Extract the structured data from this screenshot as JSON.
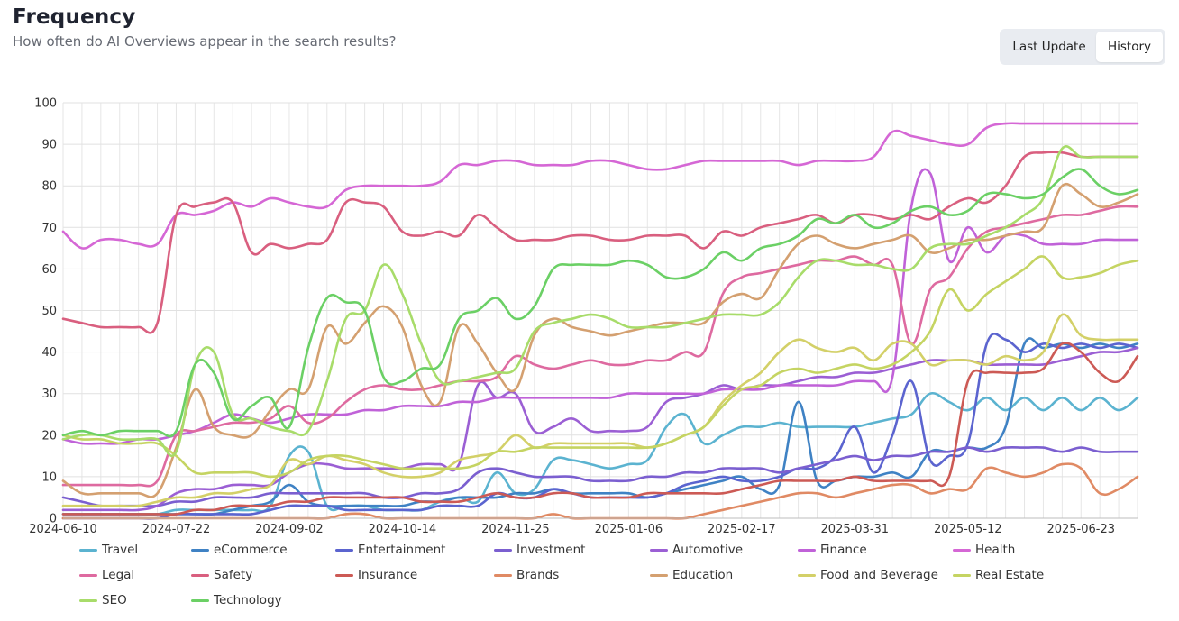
{
  "header": {
    "title": "Frequency",
    "subtitle": "How often do AI Overviews appear in the search results?"
  },
  "toggle": {
    "options": [
      "Last Update",
      "History"
    ],
    "selected": "History"
  },
  "chart_data": {
    "type": "line",
    "x": [
      "2024-06-10",
      "2024-06-17",
      "2024-06-24",
      "2024-07-01",
      "2024-07-08",
      "2024-07-15",
      "2024-07-22",
      "2024-07-29",
      "2024-08-05",
      "2024-08-12",
      "2024-08-19",
      "2024-08-26",
      "2024-09-02",
      "2024-09-09",
      "2024-09-16",
      "2024-09-23",
      "2024-09-30",
      "2024-10-07",
      "2024-10-14",
      "2024-10-21",
      "2024-10-28",
      "2024-11-04",
      "2024-11-11",
      "2024-11-18",
      "2024-11-25",
      "2024-12-02",
      "2024-12-09",
      "2024-12-16",
      "2024-12-23",
      "2024-12-30",
      "2025-01-06",
      "2025-01-13",
      "2025-01-20",
      "2025-01-27",
      "2025-02-03",
      "2025-02-10",
      "2025-02-17",
      "2025-02-24",
      "2025-03-03",
      "2025-03-10",
      "2025-03-17",
      "2025-03-24",
      "2025-03-31",
      "2025-04-07",
      "2025-04-14",
      "2025-04-21",
      "2025-04-28",
      "2025-05-05",
      "2025-05-12",
      "2025-05-19",
      "2025-05-26",
      "2025-06-02",
      "2025-06-09",
      "2025-06-16",
      "2025-06-23",
      "2025-06-30",
      "2025-07-07",
      "2025-07-14"
    ],
    "x_ticks": [
      "2024-06-10",
      "2024-07-22",
      "2024-09-02",
      "2024-10-14",
      "2024-11-25",
      "2025-01-06",
      "2025-02-17",
      "2025-03-31",
      "2025-05-12",
      "2025-06-23"
    ],
    "ylim": [
      0,
      100
    ],
    "y_ticks": [
      0,
      10,
      20,
      30,
      40,
      50,
      60,
      70,
      80,
      90,
      100
    ],
    "grid": true,
    "legend_position": "bottom",
    "series": [
      {
        "name": "Travel",
        "color": "#5bb3d0",
        "values": [
          1,
          1,
          1,
          1,
          1,
          1,
          2,
          2,
          2,
          2,
          2,
          3,
          15,
          16,
          3,
          3,
          3,
          2,
          2,
          2,
          4,
          5,
          4,
          11,
          6,
          7,
          14,
          14,
          13,
          12,
          13,
          14,
          22,
          25,
          18,
          20,
          22,
          22,
          23,
          22,
          22,
          22,
          22,
          23,
          24,
          25,
          30,
          28,
          26,
          29,
          26,
          29,
          26,
          29,
          26,
          29,
          26,
          29
        ]
      },
      {
        "name": "eCommerce",
        "color": "#3f82c4",
        "values": [
          1,
          1,
          1,
          1,
          1,
          1,
          1,
          1,
          1,
          2,
          3,
          4,
          8,
          4,
          3,
          3,
          3,
          3,
          3,
          4,
          4,
          5,
          5,
          5,
          6,
          6,
          7,
          6,
          6,
          6,
          6,
          5,
          6,
          7,
          8,
          9,
          10,
          7,
          8,
          28,
          9,
          9,
          10,
          10,
          11,
          10,
          16,
          16,
          17,
          17,
          22,
          42,
          41,
          42,
          41,
          42,
          41,
          42
        ]
      },
      {
        "name": "Entertainment",
        "color": "#5b64cf",
        "values": [
          0,
          0,
          0,
          0,
          0,
          0,
          1,
          1,
          1,
          1,
          1,
          2,
          3,
          3,
          3,
          2,
          2,
          2,
          2,
          2,
          3,
          3,
          3,
          6,
          5,
          5,
          7,
          6,
          5,
          5,
          5,
          5,
          6,
          8,
          9,
          10,
          9,
          9,
          10,
          12,
          12,
          15,
          22,
          11,
          20,
          33,
          14,
          15,
          18,
          42,
          43,
          40,
          42,
          41,
          42,
          41,
          42,
          41
        ]
      },
      {
        "name": "Investment",
        "color": "#7b5fd0",
        "values": [
          5,
          4,
          3,
          3,
          3,
          3,
          4,
          4,
          5,
          5,
          5,
          6,
          6,
          6,
          6,
          6,
          6,
          5,
          5,
          6,
          6,
          7,
          11,
          12,
          11,
          10,
          10,
          10,
          9,
          9,
          9,
          10,
          10,
          11,
          11,
          12,
          12,
          12,
          11,
          12,
          13,
          14,
          15,
          14,
          15,
          15,
          16,
          16,
          17,
          16,
          17,
          17,
          17,
          16,
          17,
          16,
          16,
          16
        ]
      },
      {
        "name": "Automotive",
        "color": "#9b5fd4",
        "values": [
          2,
          2,
          2,
          2,
          2,
          3,
          6,
          7,
          7,
          8,
          8,
          8,
          11,
          13,
          13,
          12,
          12,
          12,
          12,
          13,
          13,
          13,
          32,
          29,
          30,
          21,
          22,
          24,
          21,
          21,
          21,
          22,
          28,
          29,
          30,
          32,
          31,
          32,
          32,
          33,
          34,
          34,
          35,
          35,
          36,
          37,
          38,
          38,
          38,
          37,
          37,
          37,
          37,
          38,
          39,
          40,
          40,
          41
        ]
      },
      {
        "name": "Finance",
        "color": "#c062d8",
        "values": [
          19,
          18,
          18,
          18,
          19,
          19,
          20,
          21,
          23,
          25,
          24,
          23,
          24,
          25,
          25,
          25,
          26,
          26,
          27,
          27,
          27,
          28,
          28,
          29,
          29,
          29,
          29,
          29,
          29,
          29,
          30,
          30,
          30,
          30,
          30,
          31,
          31,
          31,
          32,
          32,
          32,
          32,
          33,
          33,
          34,
          75,
          83,
          62,
          70,
          64,
          68,
          68,
          66,
          66,
          66,
          67,
          67,
          67
        ]
      },
      {
        "name": "Health",
        "color": "#d567d5",
        "values": [
          69,
          65,
          67,
          67,
          66,
          66,
          73,
          73,
          74,
          76,
          75,
          77,
          76,
          75,
          75,
          79,
          80,
          80,
          80,
          80,
          81,
          85,
          85,
          86,
          86,
          85,
          85,
          85,
          86,
          86,
          85,
          84,
          84,
          85,
          86,
          86,
          86,
          86,
          86,
          85,
          86,
          86,
          86,
          87,
          93,
          92,
          91,
          90,
          90,
          94,
          95,
          95,
          95,
          95,
          95,
          95,
          95,
          95
        ]
      },
      {
        "name": "Legal",
        "color": "#de6aa0",
        "values": [
          8,
          8,
          8,
          8,
          8,
          9,
          20,
          21,
          22,
          23,
          23,
          24,
          27,
          23,
          24,
          28,
          31,
          32,
          31,
          31,
          32,
          33,
          33,
          34,
          39,
          37,
          36,
          37,
          38,
          37,
          37,
          38,
          38,
          40,
          40,
          54,
          58,
          59,
          60,
          61,
          62,
          62,
          63,
          61,
          61,
          42,
          55,
          58,
          65,
          69,
          70,
          71,
          72,
          73,
          73,
          74,
          75,
          75
        ]
      },
      {
        "name": "Safety",
        "color": "#d95f7f",
        "values": [
          48,
          47,
          46,
          46,
          46,
          47,
          73,
          75,
          76,
          76,
          64,
          66,
          65,
          66,
          67,
          76,
          76,
          75,
          69,
          68,
          69,
          68,
          73,
          70,
          67,
          67,
          67,
          68,
          68,
          67,
          67,
          68,
          68,
          68,
          65,
          69,
          68,
          70,
          71,
          72,
          73,
          71,
          73,
          73,
          72,
          73,
          72,
          75,
          77,
          76,
          80,
          87,
          88,
          88,
          87,
          87,
          87,
          87
        ]
      },
      {
        "name": "Insurance",
        "color": "#cc5a55",
        "values": [
          1,
          1,
          1,
          1,
          1,
          1,
          1,
          2,
          2,
          3,
          3,
          3,
          4,
          4,
          5,
          5,
          5,
          5,
          5,
          4,
          4,
          4,
          5,
          6,
          5,
          5,
          6,
          6,
          5,
          5,
          5,
          6,
          6,
          6,
          6,
          6,
          7,
          8,
          9,
          9,
          9,
          9,
          10,
          9,
          9,
          9,
          9,
          10,
          33,
          35,
          35,
          35,
          36,
          42,
          40,
          35,
          33,
          39
        ]
      },
      {
        "name": "Brands",
        "color": "#e08a64",
        "values": [
          0,
          0,
          0,
          0,
          0,
          0,
          0,
          0,
          0,
          0,
          0,
          0,
          0,
          0,
          0,
          1,
          1,
          0,
          0,
          0,
          0,
          0,
          0,
          0,
          0,
          0,
          1,
          0,
          0,
          0,
          0,
          0,
          0,
          0,
          1,
          2,
          3,
          4,
          5,
          6,
          6,
          5,
          6,
          7,
          8,
          8,
          6,
          7,
          7,
          12,
          11,
          10,
          11,
          13,
          12,
          6,
          7,
          10
        ]
      },
      {
        "name": "Education",
        "color": "#d4a070",
        "values": [
          9,
          6,
          6,
          6,
          6,
          6,
          17,
          31,
          22,
          20,
          20,
          26,
          31,
          31,
          46,
          42,
          47,
          51,
          46,
          32,
          28,
          46,
          42,
          35,
          31,
          44,
          48,
          46,
          45,
          44,
          45,
          46,
          47,
          47,
          47,
          52,
          54,
          53,
          60,
          66,
          68,
          66,
          65,
          66,
          67,
          68,
          64,
          65,
          67,
          67,
          68,
          69,
          70,
          80,
          78,
          75,
          76,
          78
        ]
      },
      {
        "name": "Food and Beverage",
        "color": "#d3d068",
        "values": [
          3,
          3,
          3,
          3,
          3,
          4,
          5,
          5,
          6,
          6,
          7,
          8,
          14,
          13,
          15,
          14,
          13,
          11,
          10,
          10,
          11,
          14,
          15,
          16,
          20,
          17,
          18,
          18,
          18,
          18,
          18,
          17,
          18,
          20,
          22,
          28,
          32,
          35,
          40,
          43,
          41,
          40,
          41,
          38,
          42,
          42,
          37,
          38,
          38,
          37,
          39,
          38,
          40,
          49,
          44,
          43,
          43,
          43
        ]
      },
      {
        "name": "Real Estate",
        "color": "#c5d462",
        "values": [
          20,
          19,
          19,
          18,
          18,
          18,
          15,
          11,
          11,
          11,
          11,
          10,
          11,
          14,
          15,
          15,
          14,
          13,
          12,
          12,
          12,
          12,
          13,
          16,
          16,
          17,
          17,
          17,
          17,
          17,
          17,
          17,
          18,
          20,
          22,
          27,
          31,
          32,
          35,
          36,
          35,
          36,
          37,
          36,
          37,
          40,
          45,
          55,
          50,
          54,
          57,
          60,
          63,
          58,
          58,
          59,
          61,
          62
        ]
      },
      {
        "name": "SEO",
        "color": "#a8dc6a",
        "values": [
          19,
          20,
          20,
          19,
          19,
          19,
          16,
          37,
          40,
          25,
          24,
          22,
          21,
          21,
          33,
          48,
          50,
          61,
          54,
          42,
          33,
          33,
          34,
          35,
          36,
          45,
          47,
          48,
          49,
          48,
          46,
          46,
          46,
          47,
          48,
          49,
          49,
          49,
          52,
          58,
          62,
          62,
          61,
          61,
          60,
          60,
          65,
          66,
          66,
          68,
          70,
          73,
          77,
          89,
          87,
          87,
          87,
          87
        ]
      },
      {
        "name": "Technology",
        "color": "#6bd065",
        "values": [
          20,
          21,
          20,
          21,
          21,
          21,
          21,
          37,
          35,
          24,
          27,
          29,
          22,
          41,
          53,
          52,
          50,
          34,
          33,
          36,
          37,
          48,
          50,
          53,
          48,
          51,
          60,
          61,
          61,
          61,
          62,
          61,
          58,
          58,
          60,
          64,
          62,
          65,
          66,
          68,
          72,
          71,
          73,
          70,
          71,
          74,
          75,
          73,
          74,
          78,
          78,
          77,
          78,
          82,
          84,
          80,
          78,
          79
        ]
      }
    ]
  }
}
